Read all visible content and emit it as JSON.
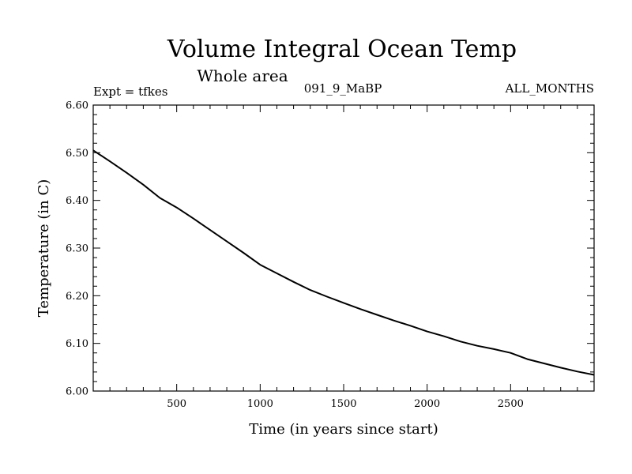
{
  "chart_data": {
    "type": "line",
    "title": "Volume Integral Ocean Temp",
    "subtitle": "Whole area",
    "expt_label": "Expt = tfkes",
    "run_label": "091_9_MaBP",
    "period_label": "ALL_MONTHS",
    "xlabel": "Time (in years since start)",
    "ylabel": "Temperature (in C)",
    "xlim": [
      0,
      3000
    ],
    "ylim": [
      6.0,
      6.6
    ],
    "x_ticks": [
      500,
      1000,
      1500,
      2000,
      2500
    ],
    "y_ticks": [
      "6.00",
      "6.10",
      "6.20",
      "6.30",
      "6.40",
      "6.50",
      "6.60"
    ],
    "grid": false,
    "series": [
      {
        "color": "#000000",
        "x": [
          0,
          100,
          200,
          300,
          400,
          500,
          600,
          700,
          800,
          900,
          1000,
          1100,
          1200,
          1300,
          1400,
          1500,
          1600,
          1700,
          1800,
          1900,
          2000,
          2100,
          2200,
          2300,
          2400,
          2500,
          2600,
          2700,
          2800,
          2900,
          3000
        ],
        "y": [
          6.505,
          6.482,
          6.458,
          6.433,
          6.405,
          6.385,
          6.362,
          6.338,
          6.314,
          6.29,
          6.265,
          6.247,
          6.229,
          6.212,
          6.198,
          6.185,
          6.172,
          6.16,
          6.148,
          6.137,
          6.125,
          6.115,
          6.104,
          6.095,
          6.088,
          6.08,
          6.067,
          6.058,
          6.049,
          6.041,
          6.034
        ]
      }
    ]
  }
}
